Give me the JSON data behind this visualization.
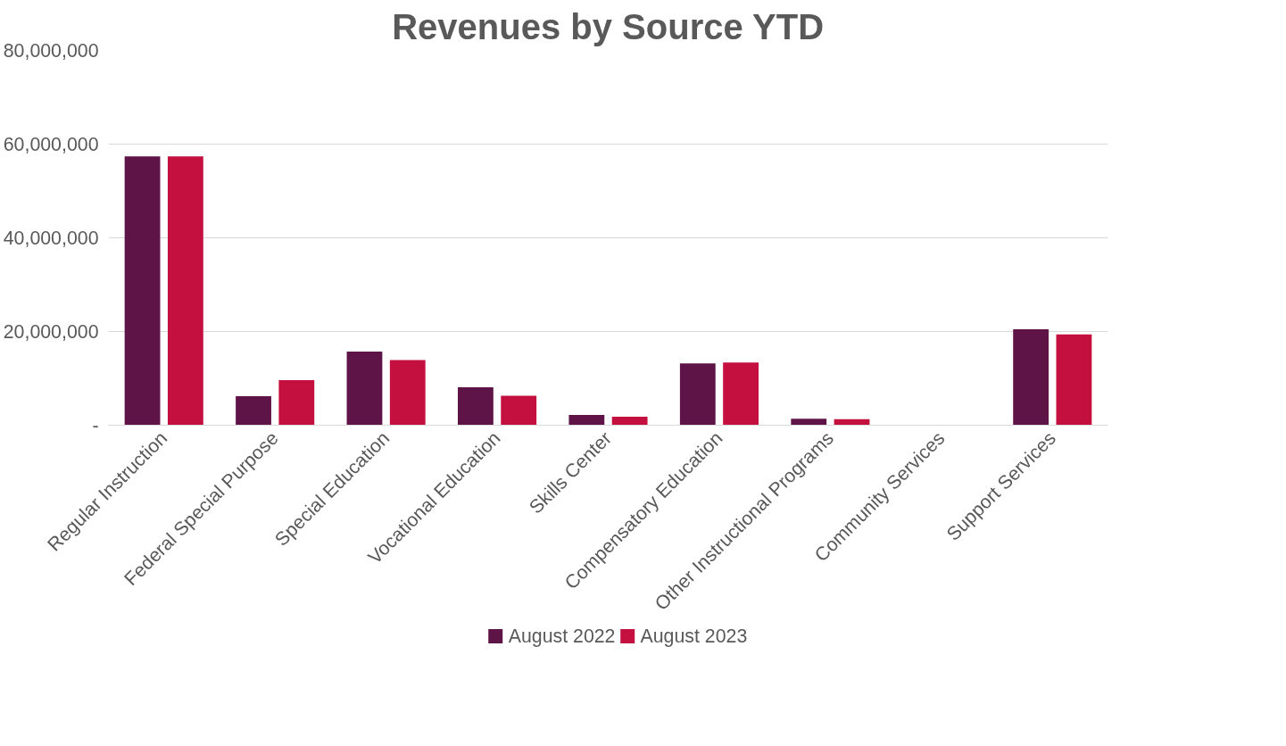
{
  "chart_data": {
    "type": "bar",
    "title": "Revenues by Source YTD",
    "categories": [
      "Regular Instruction",
      "Federal Special Purpose",
      "Special Education",
      "Vocational Education",
      "Skills Center",
      "Compensatory Education",
      "Other Instructional Programs",
      "Community Services",
      "Support Services"
    ],
    "series": [
      {
        "name": "August 2022",
        "color": "#5e1447",
        "values": [
          57400000,
          6200000,
          15700000,
          8100000,
          2200000,
          13200000,
          1400000,
          0,
          20500000
        ]
      },
      {
        "name": "August 2023",
        "color": "#c4103f",
        "values": [
          57400000,
          9600000,
          13900000,
          6300000,
          1800000,
          13400000,
          1300000,
          0,
          19400000
        ]
      }
    ],
    "ylim": [
      0,
      80000000
    ],
    "yticks": [
      {
        "value": 0,
        "label": "-"
      },
      {
        "value": 20000000,
        "label": "20,000,000"
      },
      {
        "value": 40000000,
        "label": "40,000,000"
      },
      {
        "value": 60000000,
        "label": "60,000,000"
      },
      {
        "value": 80000000,
        "label": "80,000,000"
      }
    ],
    "grid": "y",
    "legend": "bottom"
  }
}
